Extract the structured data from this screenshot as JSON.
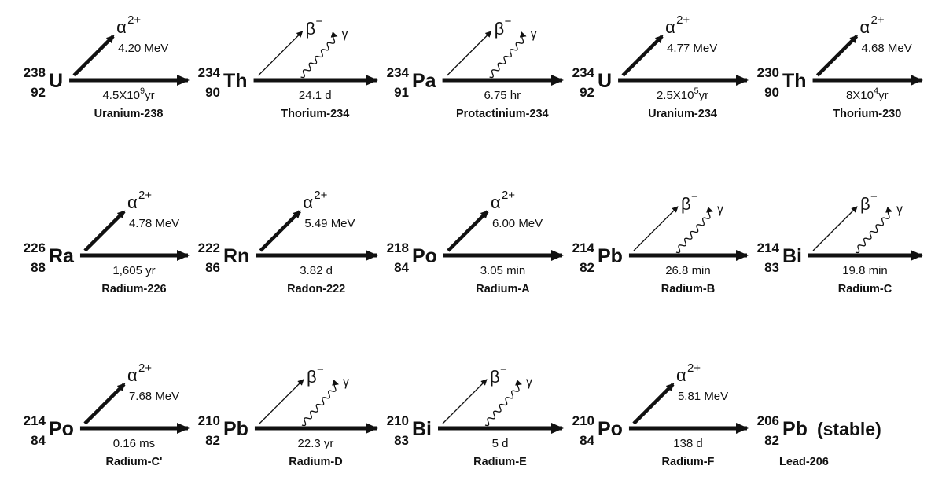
{
  "diagram": {
    "rows": [
      [
        {
          "nuclide": {
            "mass": "238",
            "z": "92",
            "symbol": "U",
            "name": "Uranium-238"
          },
          "decay": {
            "type": "alpha",
            "half_life": "4.5X10",
            "half_life_exp": "9",
            "half_life_unit": "yr",
            "energy": "4.20 MeV"
          }
        },
        {
          "nuclide": {
            "mass": "234",
            "z": "90",
            "symbol": "Th",
            "name": "Thorium-234"
          },
          "decay": {
            "type": "beta",
            "half_life": "24.1 d"
          }
        },
        {
          "nuclide": {
            "mass": "234",
            "z": "91",
            "symbol": "Pa",
            "name": "Protactinium-234"
          },
          "decay": {
            "type": "beta",
            "half_life": "6.75 hr"
          }
        },
        {
          "nuclide": {
            "mass": "234",
            "z": "92",
            "symbol": "U",
            "name": "Uranium-234"
          },
          "decay": {
            "type": "alpha",
            "half_life": "2.5X10",
            "half_life_exp": "5",
            "half_life_unit": "yr",
            "energy": "4.77 MeV"
          }
        },
        {
          "nuclide": {
            "mass": "230",
            "z": "90",
            "symbol": "Th",
            "name": "Thorium-230"
          },
          "decay": {
            "type": "alpha",
            "half_life": "8X10",
            "half_life_exp": "4",
            "half_life_unit": "yr",
            "energy": "4.68 MeV"
          }
        }
      ],
      [
        {
          "nuclide": {
            "mass": "226",
            "z": "88",
            "symbol": "Ra",
            "name": "Radium-226"
          },
          "decay": {
            "type": "alpha",
            "half_life": "1,605 yr",
            "energy": "4.78 MeV"
          }
        },
        {
          "nuclide": {
            "mass": "222",
            "z": "86",
            "symbol": "Rn",
            "name": "Radon-222"
          },
          "decay": {
            "type": "alpha",
            "half_life": "3.82 d",
            "energy": "5.49 MeV"
          }
        },
        {
          "nuclide": {
            "mass": "218",
            "z": "84",
            "symbol": "Po",
            "name": "Radium-A"
          },
          "decay": {
            "type": "alpha",
            "half_life": "3.05 min",
            "energy": "6.00 MeV"
          }
        },
        {
          "nuclide": {
            "mass": "214",
            "z": "82",
            "symbol": "Pb",
            "name": "Radium-B"
          },
          "decay": {
            "type": "beta",
            "half_life": "26.8 min"
          }
        },
        {
          "nuclide": {
            "mass": "214",
            "z": "83",
            "symbol": "Bi",
            "name": "Radium-C"
          },
          "decay": {
            "type": "beta",
            "half_life": "19.8 min"
          }
        }
      ],
      [
        {
          "nuclide": {
            "mass": "214",
            "z": "84",
            "symbol": "Po",
            "name": "Radium-C'"
          },
          "decay": {
            "type": "alpha",
            "half_life": "0.16 ms",
            "energy": "7.68 MeV"
          }
        },
        {
          "nuclide": {
            "mass": "210",
            "z": "82",
            "symbol": "Pb",
            "name": "Radium-D"
          },
          "decay": {
            "type": "beta",
            "half_life": "22.3 yr"
          }
        },
        {
          "nuclide": {
            "mass": "210",
            "z": "83",
            "symbol": "Bi",
            "name": "Radium-E"
          },
          "decay": {
            "type": "beta",
            "half_life": "5 d"
          }
        },
        {
          "nuclide": {
            "mass": "210",
            "z": "84",
            "symbol": "Po",
            "name": "Radium-F"
          },
          "decay": {
            "type": "alpha",
            "half_life": "138 d",
            "energy": "5.81 MeV"
          }
        },
        {
          "nuclide": {
            "mass": "206",
            "z": "82",
            "symbol": "Pb",
            "name": "Lead-206",
            "status": "(stable)"
          }
        }
      ]
    ],
    "particles": {
      "alpha": "α",
      "alpha_charge": "2+",
      "beta": "β",
      "beta_charge": "−",
      "gamma": "γ"
    }
  }
}
